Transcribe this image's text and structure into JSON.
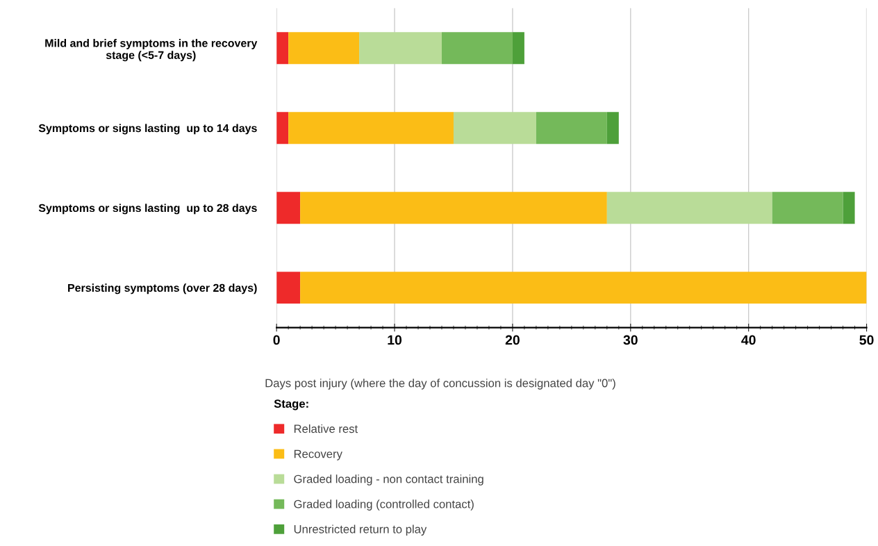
{
  "chart_data": {
    "type": "bar",
    "orientation": "horizontal",
    "stacked": true,
    "categories": [
      "Mild and brief symptoms in the recovery\nstage (<5-7 days)",
      "Symptoms or signs lasting  up to 14 days",
      "Symptoms or signs lasting  up to 28 days",
      "Persisting symptoms (over 28 days)"
    ],
    "series": [
      {
        "name": "Relative rest",
        "color": "#ee2a2a",
        "values": [
          1,
          1,
          2,
          2
        ]
      },
      {
        "name": "Recovery",
        "color": "#fbbd16",
        "values": [
          6,
          14,
          26,
          48
        ]
      },
      {
        "name": "Graded loading - non contact training",
        "color": "#b9dc98",
        "values": [
          7,
          7,
          14,
          null
        ]
      },
      {
        "name": "Graded loading (controlled contact)",
        "color": "#74b95a",
        "values": [
          6,
          6,
          6,
          null
        ]
      },
      {
        "name": "Unrestricted return to play",
        "color": "#4ea03a",
        "values": [
          1,
          1,
          1,
          null
        ]
      }
    ],
    "xlim": [
      0,
      50
    ],
    "xticks": [
      0,
      10,
      20,
      30,
      40,
      50
    ],
    "xlabel": "Days post injury (where the day of concussion is designated day \"0\")",
    "legend_title": "Stage:",
    "legend": "bottom",
    "grid": "x"
  }
}
